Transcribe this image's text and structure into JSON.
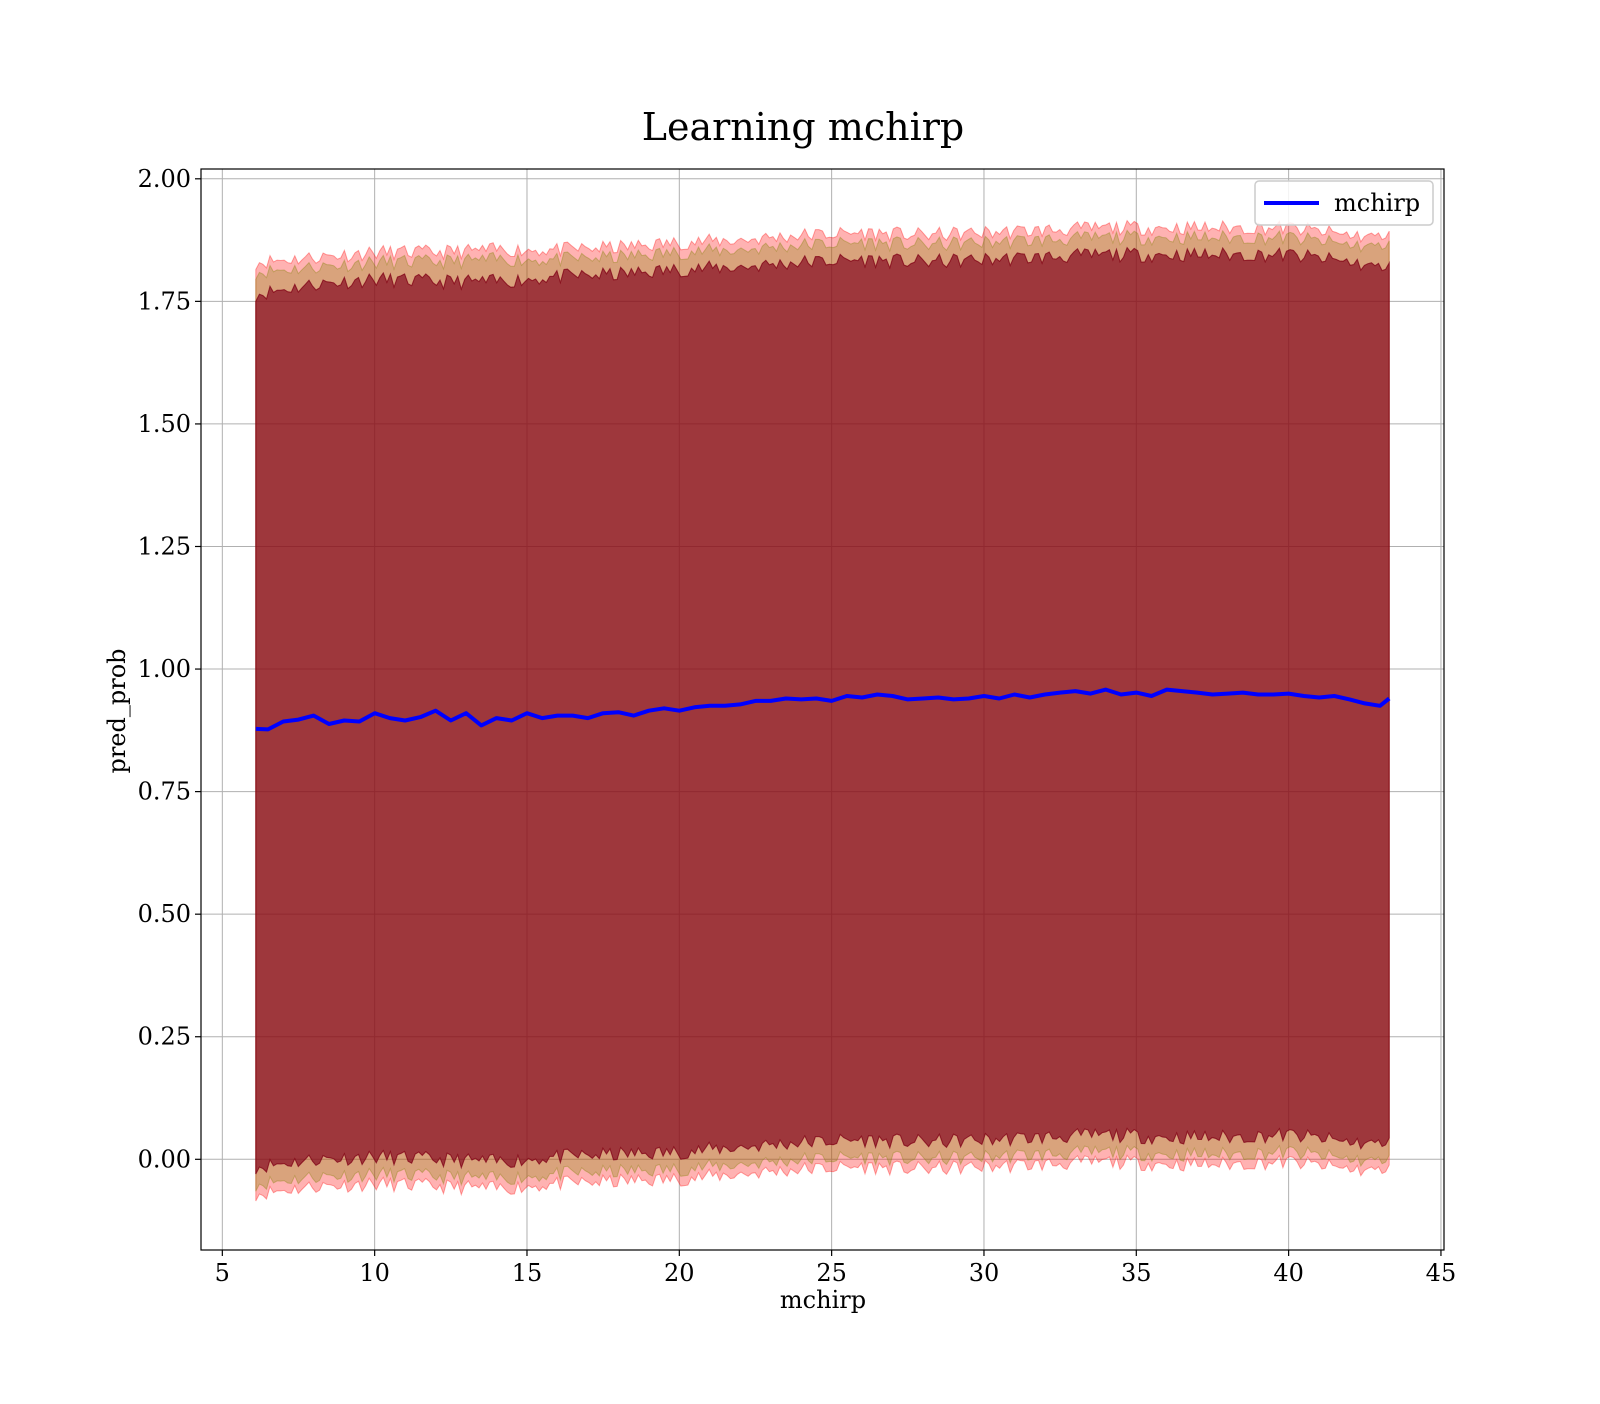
{
  "chart_data": {
    "type": "line",
    "title": "Learning mchirp",
    "xlabel": "mchirp",
    "ylabel": "pred_prob",
    "xlim": [
      4.3,
      45.1
    ],
    "ylim": [
      -0.185,
      2.02
    ],
    "xticks": [
      5,
      10,
      15,
      20,
      25,
      30,
      35,
      40,
      45
    ],
    "yticks": [
      0.0,
      0.25,
      0.5,
      0.75,
      1.0,
      1.25,
      1.5,
      1.75,
      2.0
    ],
    "ytick_labels": [
      "0.00",
      "0.25",
      "0.50",
      "0.75",
      "1.00",
      "1.25",
      "1.50",
      "1.75",
      "2.00"
    ],
    "grid": true,
    "legend": {
      "position": "top-right",
      "entries": [
        "mchirp"
      ]
    },
    "x_range": [
      6.1,
      43.3
    ],
    "series": [
      {
        "name": "mchirp",
        "color": "#0000ff",
        "x": [
          6.1,
          6.5,
          7.0,
          7.5,
          8.0,
          8.5,
          9.0,
          9.5,
          10.0,
          10.5,
          11.0,
          11.5,
          12.0,
          12.5,
          13.0,
          13.5,
          14.0,
          14.5,
          15.0,
          15.5,
          16.0,
          16.5,
          17.0,
          17.5,
          18.0,
          18.5,
          19.0,
          19.5,
          20.0,
          20.5,
          21.0,
          21.5,
          22.0,
          22.5,
          23.0,
          23.5,
          24.0,
          24.5,
          25.0,
          25.5,
          26.0,
          26.5,
          27.0,
          27.5,
          28.0,
          28.5,
          29.0,
          29.5,
          30.0,
          30.5,
          31.0,
          31.5,
          32.0,
          32.5,
          33.0,
          33.5,
          34.0,
          34.5,
          35.0,
          35.5,
          36.0,
          36.5,
          37.0,
          37.5,
          38.0,
          38.5,
          39.0,
          39.5,
          40.0,
          40.5,
          41.0,
          41.5,
          42.0,
          42.5,
          43.0,
          43.3
        ],
        "values": [
          0.878,
          0.877,
          0.893,
          0.897,
          0.905,
          0.888,
          0.895,
          0.893,
          0.91,
          0.9,
          0.895,
          0.902,
          0.915,
          0.895,
          0.91,
          0.885,
          0.9,
          0.895,
          0.91,
          0.9,
          0.905,
          0.905,
          0.9,
          0.91,
          0.912,
          0.905,
          0.915,
          0.92,
          0.915,
          0.922,
          0.925,
          0.925,
          0.928,
          0.935,
          0.935,
          0.94,
          0.938,
          0.94,
          0.935,
          0.945,
          0.942,
          0.948,
          0.945,
          0.938,
          0.94,
          0.942,
          0.938,
          0.94,
          0.945,
          0.94,
          0.948,
          0.942,
          0.948,
          0.952,
          0.955,
          0.95,
          0.958,
          0.948,
          0.952,
          0.945,
          0.958,
          0.955,
          0.952,
          0.948,
          0.95,
          0.952,
          0.948,
          0.948,
          0.95,
          0.945,
          0.942,
          0.945,
          0.938,
          0.93,
          0.925,
          0.94
        ]
      }
    ],
    "bands": [
      {
        "color": "#ff0000",
        "opacity": 0.3,
        "x": [
          6.1,
          8.0,
          10.0,
          12.0,
          14.0,
          16.0,
          18.0,
          20.0,
          22.0,
          24.0,
          26.0,
          28.0,
          30.0,
          32.0,
          34.0,
          36.0,
          38.0,
          40.0,
          42.0,
          43.3
        ],
        "lower": [
          -0.07,
          -0.055,
          -0.05,
          -0.055,
          -0.06,
          -0.05,
          -0.045,
          -0.04,
          -0.03,
          -0.02,
          -0.015,
          -0.02,
          -0.015,
          -0.01,
          -0.005,
          -0.01,
          -0.01,
          -0.005,
          -0.02,
          -0.025
        ],
        "upper": [
          1.83,
          1.84,
          1.85,
          1.85,
          1.855,
          1.855,
          1.86,
          1.87,
          1.875,
          1.885,
          1.89,
          1.885,
          1.89,
          1.895,
          1.9,
          1.9,
          1.9,
          1.9,
          1.885,
          1.88
        ]
      },
      {
        "color": "#808000",
        "opacity": 0.3,
        "x": [
          6.1,
          8.0,
          10.0,
          12.0,
          14.0,
          16.0,
          18.0,
          20.0,
          22.0,
          24.0,
          26.0,
          28.0,
          30.0,
          32.0,
          34.0,
          36.0,
          38.0,
          40.0,
          42.0,
          43.3
        ],
        "lower": [
          -0.05,
          -0.035,
          -0.03,
          -0.035,
          -0.04,
          -0.03,
          -0.025,
          -0.02,
          -0.01,
          0.0,
          0.005,
          0.0,
          0.005,
          0.01,
          0.015,
          0.01,
          0.01,
          0.015,
          0.0,
          -0.005
        ],
        "upper": [
          1.81,
          1.82,
          1.83,
          1.83,
          1.835,
          1.835,
          1.84,
          1.85,
          1.855,
          1.865,
          1.87,
          1.865,
          1.87,
          1.875,
          1.88,
          1.88,
          1.88,
          1.88,
          1.865,
          1.86
        ]
      },
      {
        "color": "#800080",
        "opacity": 0.3,
        "x": [
          6.1,
          8.0,
          10.0,
          12.0,
          14.0,
          16.0,
          18.0,
          20.0,
          22.0,
          24.0,
          26.0,
          28.0,
          30.0,
          32.0,
          34.0,
          36.0,
          38.0,
          40.0,
          42.0,
          43.3
        ],
        "lower": [
          -0.015,
          0.0,
          0.005,
          0.0,
          -0.005,
          0.005,
          0.01,
          0.015,
          0.025,
          0.035,
          0.04,
          0.035,
          0.04,
          0.045,
          0.05,
          0.045,
          0.045,
          0.05,
          0.035,
          0.03
        ],
        "upper": [
          1.765,
          1.785,
          1.795,
          1.79,
          1.79,
          1.8,
          1.805,
          1.815,
          1.82,
          1.83,
          1.835,
          1.83,
          1.835,
          1.84,
          1.845,
          1.845,
          1.845,
          1.845,
          1.83,
          1.815
        ]
      },
      {
        "color": "#800000",
        "opacity": 0.3,
        "x": [
          6.1,
          8.0,
          10.0,
          12.0,
          14.0,
          16.0,
          18.0,
          20.0,
          22.0,
          24.0,
          26.0,
          28.0,
          30.0,
          32.0,
          34.0,
          36.0,
          38.0,
          40.0,
          42.0,
          43.3
        ],
        "lower": [
          -0.015,
          0.0,
          0.005,
          0.0,
          -0.005,
          0.005,
          0.01,
          0.015,
          0.025,
          0.035,
          0.04,
          0.035,
          0.04,
          0.045,
          0.05,
          0.045,
          0.045,
          0.05,
          0.035,
          0.03
        ],
        "upper": [
          1.765,
          1.785,
          1.795,
          1.79,
          1.79,
          1.8,
          1.805,
          1.815,
          1.82,
          1.83,
          1.835,
          1.83,
          1.835,
          1.84,
          1.845,
          1.845,
          1.845,
          1.845,
          1.83,
          1.815
        ]
      },
      {
        "color": "#800000",
        "opacity": 0.3,
        "x": [
          6.1,
          8.0,
          10.0,
          12.0,
          14.0,
          16.0,
          18.0,
          20.0,
          22.0,
          24.0,
          26.0,
          28.0,
          30.0,
          32.0,
          34.0,
          36.0,
          38.0,
          40.0,
          42.0,
          43.3
        ],
        "lower": [
          -0.015,
          0.0,
          0.005,
          0.0,
          -0.005,
          0.005,
          0.01,
          0.015,
          0.025,
          0.035,
          0.04,
          0.035,
          0.04,
          0.045,
          0.05,
          0.045,
          0.045,
          0.05,
          0.035,
          0.03
        ],
        "upper": [
          1.765,
          1.785,
          1.795,
          1.79,
          1.79,
          1.8,
          1.805,
          1.815,
          1.82,
          1.83,
          1.835,
          1.83,
          1.835,
          1.84,
          1.845,
          1.845,
          1.845,
          1.845,
          1.83,
          1.815
        ]
      }
    ]
  }
}
